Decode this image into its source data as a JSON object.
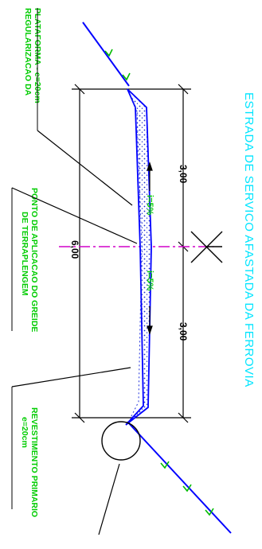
{
  "drawing": {
    "title": "ESTRADA  DE  SERVICO  AFASTADA  DA  FERROVIA",
    "labels": {
      "regularizacao": [
        "REGULARIZACAO DA",
        "PLATAFORMA  -  e=20cm"
      ],
      "ponto": [
        "PONTO  DE  APLICACAO  DO  GREIDE",
        "DE  TERRAPLENGEM"
      ],
      "revestimento": [
        "REVESTIMENTO  PRIMARIO",
        "e=20cm"
      ]
    },
    "dimensions": {
      "half_left": "3,00",
      "half_right": "3,00",
      "total": "6,00",
      "slope_left": "i=5%",
      "slope_right": "i=5%"
    },
    "colors": {
      "title": "#00e5ff",
      "label": "#00cc00",
      "dimension_text": "#000000",
      "slope_text": "#00cc00",
      "terrain": "#0000ff",
      "fill_dots": "#1a2bd1",
      "centerline": "#d000c8"
    },
    "icons": {
      "axis_symbol": "cross-section-axis-icon",
      "detail_callout": "detail-circle-icon"
    }
  }
}
